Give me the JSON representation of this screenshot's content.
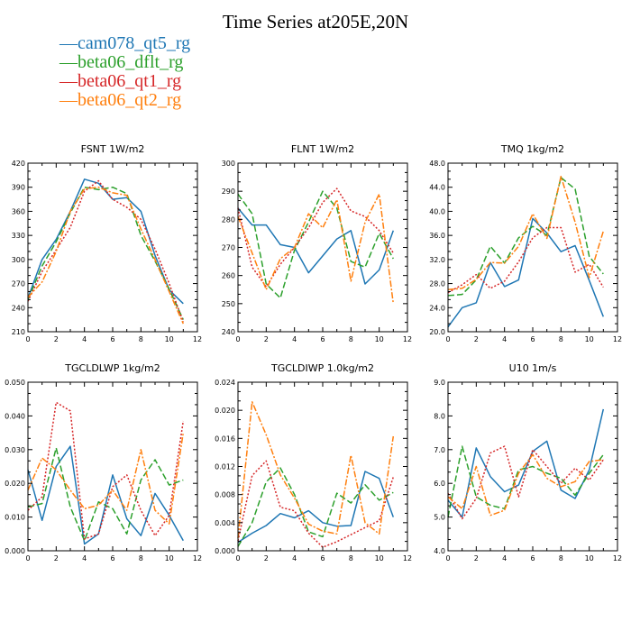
{
  "title": "Time Series at205E,20N",
  "legend": [
    {
      "name": "cam078_qt5_rg",
      "color": "#1f77b4",
      "dash": ""
    },
    {
      "name": "beta06_dflt_rg",
      "color": "#2ca02c",
      "dash": "7,3"
    },
    {
      "name": "beta06_qt1_rg",
      "color": "#d62728",
      "dash": "2,2"
    },
    {
      "name": "beta06_qt2_rg",
      "color": "#ff7f0e",
      "dash": "7,2,2,2"
    }
  ],
  "chart_data": [
    {
      "type": "line",
      "title": "FSNT   1W/m2",
      "xlim": [
        0,
        12
      ],
      "ylim": [
        210,
        420
      ],
      "xticks": [
        0,
        2,
        4,
        6,
        8,
        10,
        12
      ],
      "xtick_labels": [
        "0",
        "2",
        "4",
        "6",
        "8",
        "10",
        "12"
      ],
      "yticks": [
        210,
        240,
        270,
        300,
        330,
        360,
        390,
        420
      ],
      "ytick_labels": [
        "210",
        "240",
        "270",
        "300",
        "330",
        "360",
        "390",
        "420"
      ],
      "x": [
        0,
        1,
        2,
        3,
        4,
        5,
        6,
        7,
        8,
        9,
        10,
        11
      ],
      "series": [
        {
          "name": "cam078_qt5_rg",
          "values": [
            252,
            300,
            325,
            360,
            400,
            395,
            375,
            377,
            360,
            305,
            262,
            245
          ]
        },
        {
          "name": "beta06_dflt_rg",
          "values": [
            250,
            292,
            322,
            358,
            390,
            387,
            390,
            382,
            330,
            298,
            263,
            225
          ]
        },
        {
          "name": "beta06_qt1_rg",
          "values": [
            248,
            285,
            312,
            340,
            385,
            398,
            375,
            365,
            350,
            313,
            270,
            222
          ]
        },
        {
          "name": "beta06_qt2_rg",
          "values": [
            253,
            272,
            310,
            360,
            388,
            390,
            383,
            380,
            338,
            300,
            260,
            220
          ]
        }
      ]
    },
    {
      "type": "line",
      "title": "FLNT   1W/m2",
      "xlim": [
        0,
        12
      ],
      "ylim": [
        240,
        300
      ],
      "xticks": [
        0,
        2,
        4,
        6,
        8,
        10,
        12
      ],
      "xtick_labels": [
        "0",
        "2",
        "4",
        "6",
        "8",
        "10",
        "12"
      ],
      "yticks": [
        240,
        250,
        260,
        270,
        280,
        290,
        300
      ],
      "ytick_labels": [
        "240",
        "250",
        "260",
        "270",
        "280",
        "290",
        "300"
      ],
      "x": [
        0,
        1,
        2,
        3,
        4,
        5,
        6,
        7,
        8,
        9,
        10,
        11
      ],
      "series": [
        {
          "name": "cam078_qt5_rg",
          "values": [
            284,
            278,
            278,
            271,
            270,
            261,
            267,
            273,
            276,
            257,
            262,
            276
          ]
        },
        {
          "name": "beta06_dflt_rg",
          "values": [
            289,
            282,
            257,
            252,
            269,
            279,
            290,
            284,
            265,
            263,
            275,
            266
          ]
        },
        {
          "name": "beta06_qt1_rg",
          "values": [
            284,
            263,
            256,
            264,
            270,
            277,
            286,
            291,
            283,
            281,
            276,
            268
          ]
        },
        {
          "name": "beta06_qt2_rg",
          "values": [
            281,
            268,
            255,
            266,
            270,
            282,
            277,
            287,
            258,
            279,
            289,
            250
          ]
        }
      ]
    },
    {
      "type": "line",
      "title": "TMQ   1kg/m2",
      "xlim": [
        0,
        12
      ],
      "ylim": [
        20,
        48
      ],
      "xticks": [
        0,
        2,
        4,
        6,
        8,
        10,
        12
      ],
      "xtick_labels": [
        "0",
        "2",
        "4",
        "6",
        "8",
        "10",
        "12"
      ],
      "yticks": [
        20,
        24,
        28,
        32,
        36,
        40,
        44,
        48
      ],
      "ytick_labels": [
        "20.0",
        "24.0",
        "28.0",
        "32.0",
        "36.0",
        "40.0",
        "44.0",
        "48.0"
      ],
      "x": [
        0,
        1,
        2,
        3,
        4,
        5,
        6,
        7,
        8,
        9,
        10,
        11
      ],
      "series": [
        {
          "name": "cam078_qt5_rg",
          "values": [
            20.8,
            24.0,
            24.8,
            31.5,
            27.5,
            28.6,
            38.8,
            36.4,
            33.3,
            34.3,
            28.5,
            22.5
          ]
        },
        {
          "name": "beta06_dflt_rg",
          "values": [
            26.0,
            26.2,
            28.6,
            34.2,
            31.4,
            35.6,
            37.5,
            36.0,
            45.6,
            43.7,
            32.5,
            29.6
          ]
        },
        {
          "name": "beta06_qt1_rg",
          "values": [
            26.5,
            27.8,
            29.5,
            27.2,
            28.4,
            31.6,
            35.6,
            37.3,
            37.3,
            29.9,
            31.2,
            27.4
          ]
        },
        {
          "name": "beta06_qt2_rg",
          "values": [
            27.0,
            27.2,
            28.7,
            31.5,
            31.4,
            34.2,
            39.6,
            35.5,
            45.8,
            38.2,
            29.0,
            36.7
          ]
        }
      ]
    },
    {
      "type": "line",
      "title": "TGCLDLWP   1kg/m2",
      "xlim": [
        0,
        12
      ],
      "ylim": [
        0,
        0.05
      ],
      "xticks": [
        0,
        2,
        4,
        6,
        8,
        10,
        12
      ],
      "xtick_labels": [
        "0",
        "2",
        "4",
        "6",
        "8",
        "10",
        "12"
      ],
      "yticks": [
        0,
        0.01,
        0.02,
        0.03,
        0.04,
        0.05
      ],
      "ytick_labels": [
        "0.000",
        "0.010",
        "0.020",
        "0.030",
        "0.040",
        "0.050"
      ],
      "x": [
        0,
        1,
        2,
        3,
        4,
        5,
        6,
        7,
        8,
        9,
        10,
        11
      ],
      "series": [
        {
          "name": "cam078_qt5_rg",
          "values": [
            0.024,
            0.009,
            0.025,
            0.031,
            0.002,
            0.005,
            0.0225,
            0.0095,
            0.0045,
            0.017,
            0.0105,
            0.003
          ]
        },
        {
          "name": "beta06_dflt_rg",
          "values": [
            0.013,
            0.014,
            0.0305,
            0.013,
            0.003,
            0.0145,
            0.0125,
            0.005,
            0.021,
            0.027,
            0.0195,
            0.021
          ]
        },
        {
          "name": "beta06_qt1_rg",
          "values": [
            0.012,
            0.016,
            0.044,
            0.0415,
            0.0035,
            0.005,
            0.019,
            0.0225,
            0.012,
            0.0045,
            0.0105,
            0.0385
          ]
        },
        {
          "name": "beta06_qt2_rg",
          "values": [
            0.018,
            0.0275,
            0.024,
            0.018,
            0.0125,
            0.0135,
            0.018,
            0.012,
            0.03,
            0.012,
            0.008,
            0.035
          ]
        }
      ]
    },
    {
      "type": "line",
      "title": "TGCLDIWP   1.0kg/m2",
      "xlim": [
        0,
        12
      ],
      "ylim": [
        0,
        0.024
      ],
      "xticks": [
        0,
        2,
        4,
        6,
        8,
        10,
        12
      ],
      "xtick_labels": [
        "0",
        "2",
        "4",
        "6",
        "8",
        "10",
        "12"
      ],
      "yticks": [
        0,
        0.004,
        0.008,
        0.012,
        0.016,
        0.02,
        0.024
      ],
      "ytick_labels": [
        "0.000",
        "0.004",
        "0.008",
        "0.012",
        "0.016",
        "0.020",
        "0.024"
      ],
      "x": [
        0,
        1,
        2,
        3,
        4,
        5,
        6,
        7,
        8,
        9,
        10,
        11
      ],
      "series": [
        {
          "name": "cam078_qt5_rg",
          "values": [
            0.0012,
            0.0025,
            0.0036,
            0.0053,
            0.0047,
            0.0057,
            0.004,
            0.0035,
            0.0036,
            0.0113,
            0.0103,
            0.0048
          ]
        },
        {
          "name": "beta06_dflt_rg",
          "values": [
            0.0006,
            0.004,
            0.0098,
            0.0118,
            0.008,
            0.0027,
            0.002,
            0.0082,
            0.0068,
            0.0094,
            0.0072,
            0.0083
          ]
        },
        {
          "name": "beta06_qt1_rg",
          "values": [
            0.0014,
            0.0107,
            0.0128,
            0.0062,
            0.0057,
            0.0025,
            0.0005,
            0.0013,
            0.0023,
            0.0033,
            0.0043,
            0.0105
          ]
        },
        {
          "name": "beta06_qt2_rg",
          "values": [
            0.0018,
            0.0212,
            0.0165,
            0.0108,
            0.0075,
            0.0038,
            0.0028,
            0.0024,
            0.0136,
            0.004,
            0.0024,
            0.0163
          ]
        }
      ]
    },
    {
      "type": "line",
      "title": "U10   1m/s",
      "xlim": [
        0,
        12
      ],
      "ylim": [
        4,
        9
      ],
      "xticks": [
        0,
        2,
        4,
        6,
        8,
        10,
        12
      ],
      "xtick_labels": [
        "0",
        "2",
        "4",
        "6",
        "8",
        "10",
        "12"
      ],
      "yticks": [
        4,
        5,
        6,
        7,
        8,
        9
      ],
      "ytick_labels": [
        "4.0",
        "5.0",
        "6.0",
        "7.0",
        "8.0",
        "9.0"
      ],
      "x": [
        0,
        1,
        2,
        3,
        4,
        5,
        6,
        7,
        8,
        9,
        10,
        11
      ],
      "series": [
        {
          "name": "cam078_qt5_rg",
          "values": [
            5.5,
            5.0,
            7.05,
            6.2,
            5.75,
            5.95,
            6.95,
            7.25,
            5.8,
            5.55,
            6.4,
            8.2
          ]
        },
        {
          "name": "beta06_dflt_rg",
          "values": [
            5.0,
            7.1,
            5.6,
            5.35,
            5.25,
            6.4,
            6.5,
            6.3,
            6.15,
            5.65,
            6.3,
            6.85
          ]
        },
        {
          "name": "beta06_qt1_rg",
          "values": [
            5.7,
            4.95,
            5.55,
            6.9,
            7.1,
            5.6,
            7.0,
            6.5,
            6.0,
            6.45,
            6.1,
            6.7
          ]
        },
        {
          "name": "beta06_qt2_rg",
          "values": [
            5.6,
            5.25,
            6.5,
            5.05,
            5.2,
            6.3,
            6.85,
            6.15,
            5.9,
            6.05,
            6.65,
            6.7
          ]
        }
      ]
    }
  ]
}
